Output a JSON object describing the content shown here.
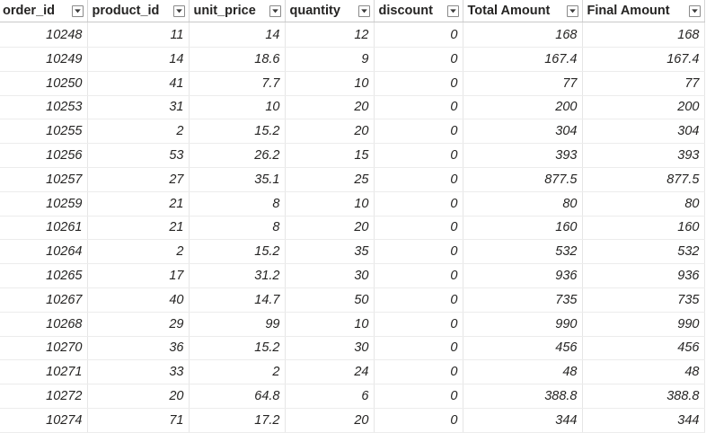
{
  "columns": [
    {
      "label": "order_id",
      "key": "order_id"
    },
    {
      "label": "product_id",
      "key": "product_id"
    },
    {
      "label": "unit_price",
      "key": "unit_price"
    },
    {
      "label": "quantity",
      "key": "quantity"
    },
    {
      "label": "discount",
      "key": "discount"
    },
    {
      "label": "Total Amount",
      "key": "total_amount"
    },
    {
      "label": "Final Amount",
      "key": "final_amount"
    }
  ],
  "rows": [
    [
      "10248",
      "11",
      "14",
      "12",
      "0",
      "168",
      "168"
    ],
    [
      "10249",
      "14",
      "18.6",
      "9",
      "0",
      "167.4",
      "167.4"
    ],
    [
      "10250",
      "41",
      "7.7",
      "10",
      "0",
      "77",
      "77"
    ],
    [
      "10253",
      "31",
      "10",
      "20",
      "0",
      "200",
      "200"
    ],
    [
      "10255",
      "2",
      "15.2",
      "20",
      "0",
      "304",
      "304"
    ],
    [
      "10256",
      "53",
      "26.2",
      "15",
      "0",
      "393",
      "393"
    ],
    [
      "10257",
      "27",
      "35.1",
      "25",
      "0",
      "877.5",
      "877.5"
    ],
    [
      "10259",
      "21",
      "8",
      "10",
      "0",
      "80",
      "80"
    ],
    [
      "10261",
      "21",
      "8",
      "20",
      "0",
      "160",
      "160"
    ],
    [
      "10264",
      "2",
      "15.2",
      "35",
      "0",
      "532",
      "532"
    ],
    [
      "10265",
      "17",
      "31.2",
      "30",
      "0",
      "936",
      "936"
    ],
    [
      "10267",
      "40",
      "14.7",
      "50",
      "0",
      "735",
      "735"
    ],
    [
      "10268",
      "29",
      "99",
      "10",
      "0",
      "990",
      "990"
    ],
    [
      "10270",
      "36",
      "15.2",
      "30",
      "0",
      "456",
      "456"
    ],
    [
      "10271",
      "33",
      "2",
      "24",
      "0",
      "48",
      "48"
    ],
    [
      "10272",
      "20",
      "64.8",
      "6",
      "0",
      "388.8",
      "388.8"
    ],
    [
      "10274",
      "71",
      "17.2",
      "20",
      "0",
      "344",
      "344"
    ]
  ],
  "icons": {
    "filter": "chevron-down-icon"
  },
  "colors": {
    "text": "#252423",
    "header_border": "#c8c8c8",
    "grid_line": "#e6e6e6"
  }
}
